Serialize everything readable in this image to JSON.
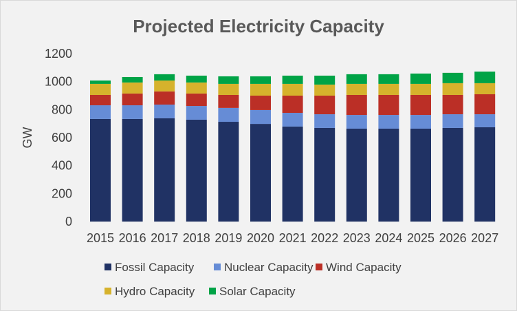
{
  "chart_data": {
    "type": "bar",
    "stacked": true,
    "title": "Projected Electricity Capacity",
    "xlabel": "",
    "ylabel": "GW",
    "ylim": [
      0,
      1200
    ],
    "yticks": [
      0,
      200,
      400,
      600,
      800,
      1000,
      1200
    ],
    "grid": false,
    "legend_position": "bottom",
    "categories": [
      "2015",
      "2016",
      "2017",
      "2018",
      "2019",
      "2020",
      "2021",
      "2022",
      "2023",
      "2024",
      "2025",
      "2026",
      "2027"
    ],
    "series": [
      {
        "name": "Fossil Capacity",
        "color": "#203264",
        "values": [
          733,
          733,
          738,
          728,
          713,
          698,
          679,
          669,
          664,
          664,
          664,
          669,
          674
        ]
      },
      {
        "name": "Nuclear Capacity",
        "color": "#668cd6",
        "values": [
          98,
          98,
          98,
          98,
          99,
          99,
          98,
          98,
          98,
          98,
          98,
          98,
          93
        ]
      },
      {
        "name": "Wind Capacity",
        "color": "#bb2f26",
        "values": [
          74,
          84,
          94,
          89,
          93,
          103,
          123,
          133,
          143,
          143,
          143,
          138,
          143
        ]
      },
      {
        "name": "Hydro Capacity",
        "color": "#d6b22c",
        "values": [
          79,
          79,
          78,
          79,
          79,
          84,
          84,
          79,
          79,
          79,
          79,
          84,
          79
        ]
      },
      {
        "name": "Solar Capacity",
        "color": "#00a346",
        "values": [
          24,
          39,
          45,
          49,
          54,
          54,
          59,
          64,
          69,
          69,
          74,
          74,
          83
        ]
      }
    ]
  }
}
